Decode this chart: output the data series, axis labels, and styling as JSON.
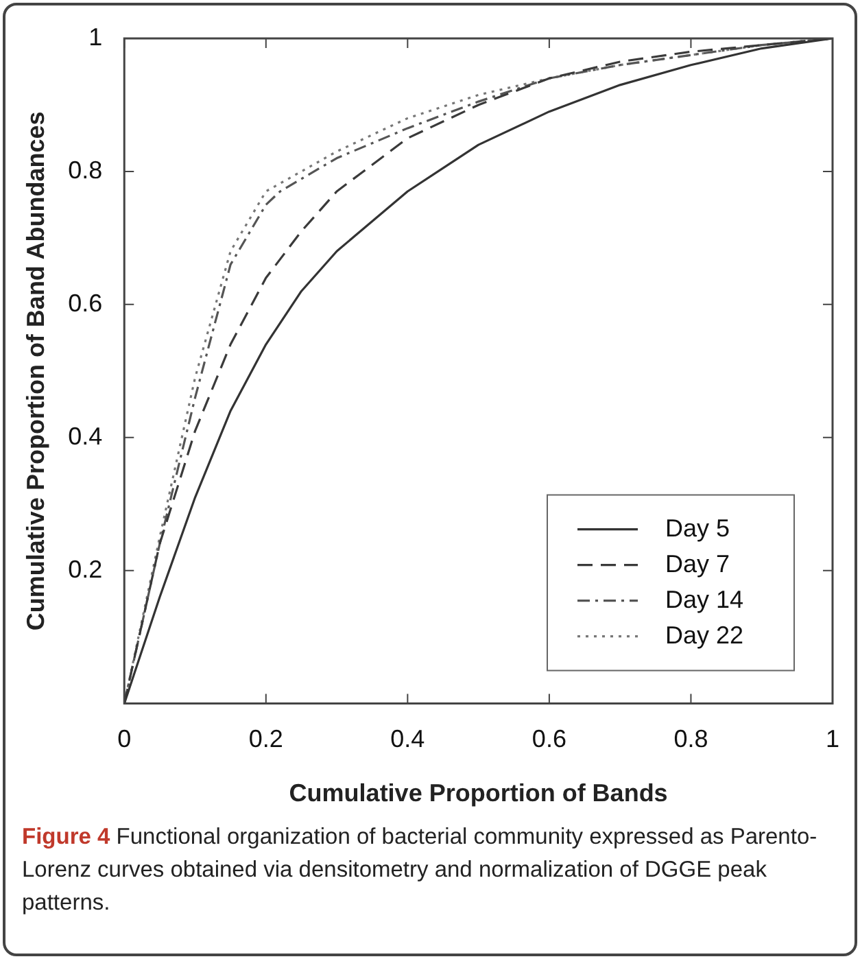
{
  "chart_data": {
    "type": "line",
    "xlabel": "Cumulative Proportion of Bands",
    "ylabel": "Cumulative Proportion of Band Abundances",
    "annotations": [
      "**Figure 4** Functional organization of bacterial community expressed as Parento-Lorenz curves obtained via densitometry and normalization of DGGE peak patterns."
    ],
    "xlim": [
      0,
      1
    ],
    "ylim": [
      0,
      1
    ],
    "xticks": [
      0,
      0.2,
      0.4,
      0.6,
      0.8,
      1
    ],
    "yticks": [
      {
        "value": 0,
        "label": null
      },
      0.2,
      0.4,
      0.6,
      0.8,
      1
    ],
    "grid": false,
    "legend": "bottom right",
    "marker": "none",
    "series": [
      {
        "name": "Day 5",
        "color": "#333333",
        "line_style": "solid",
        "x": [
          0,
          0.05,
          0.1,
          0.15,
          0.2,
          0.25,
          0.3,
          0.4,
          0.5,
          0.6,
          0.7,
          0.8,
          0.9,
          1
        ],
        "values": [
          0,
          0.16,
          0.31,
          0.44,
          0.54,
          0.62,
          0.68,
          0.77,
          0.84,
          0.89,
          0.93,
          0.96,
          0.985,
          1
        ]
      },
      {
        "name": "Day 7",
        "color": "#3a3a3a",
        "line_style": "dashed",
        "x": [
          0,
          0.05,
          0.1,
          0.15,
          0.2,
          0.25,
          0.3,
          0.4,
          0.5,
          0.6,
          0.7,
          0.8,
          0.9,
          1
        ],
        "values": [
          0,
          0.24,
          0.41,
          0.54,
          0.64,
          0.71,
          0.77,
          0.85,
          0.9,
          0.94,
          0.965,
          0.98,
          0.99,
          1
        ]
      },
      {
        "name": "Day 14",
        "color": "#555555",
        "line_style": "dashdot",
        "x": [
          0,
          0.05,
          0.1,
          0.15,
          0.2,
          0.22,
          0.3,
          0.4,
          0.5,
          0.6,
          0.7,
          0.8,
          0.9,
          1
        ],
        "values": [
          0,
          0.24,
          0.46,
          0.66,
          0.75,
          0.77,
          0.82,
          0.865,
          0.905,
          0.94,
          0.96,
          0.975,
          0.99,
          1
        ]
      },
      {
        "name": "Day 22",
        "color": "#777777",
        "line_style": "dotted",
        "x": [
          0,
          0.05,
          0.1,
          0.15,
          0.2,
          0.3,
          0.4,
          0.5,
          0.6,
          0.7,
          0.8,
          0.9,
          1
        ],
        "values": [
          0,
          0.25,
          0.49,
          0.68,
          0.77,
          0.83,
          0.88,
          0.915,
          0.94,
          0.96,
          0.975,
          0.99,
          1
        ]
      }
    ]
  }
}
